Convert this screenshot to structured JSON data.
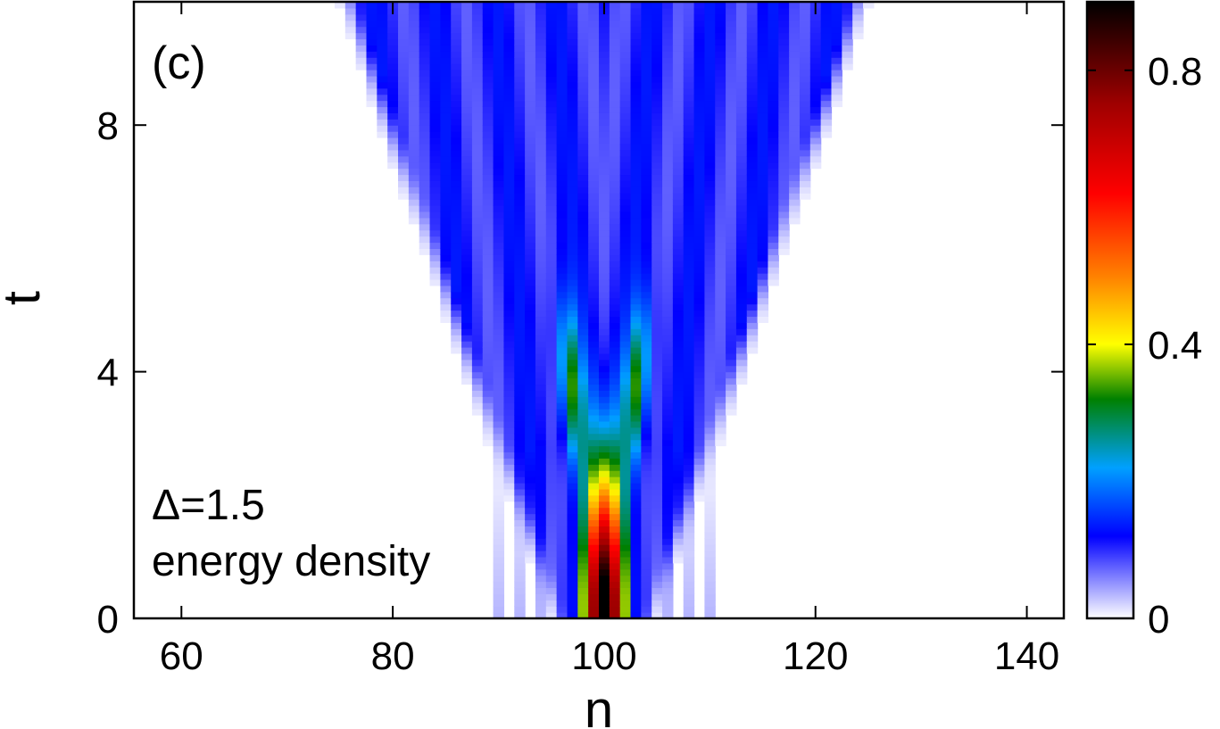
{
  "chart_data": {
    "type": "heatmap",
    "title": "",
    "panel_label": "(c)",
    "xlabel": "n",
    "ylabel": "t",
    "xlim": [
      55.5,
      143.5
    ],
    "ylim": [
      0,
      10
    ],
    "x_ticks": [
      60,
      80,
      100,
      120,
      140
    ],
    "y_ticks": [
      0,
      4,
      8
    ],
    "annotations": [
      "Δ=1.5",
      "energy density"
    ],
    "colorbar": {
      "range": [
        0,
        0.9
      ],
      "ticks": [
        0,
        0.4,
        0.8
      ],
      "colormap": [
        {
          "value": 0.0,
          "color": "#ffffff"
        },
        {
          "value": 0.12,
          "color": "#0000ff"
        },
        {
          "value": 0.22,
          "color": "#00a0ff"
        },
        {
          "value": 0.32,
          "color": "#008000"
        },
        {
          "value": 0.4,
          "color": "#ffff00"
        },
        {
          "value": 0.5,
          "color": "#ff8000"
        },
        {
          "value": 0.62,
          "color": "#ff0000"
        },
        {
          "value": 0.75,
          "color": "#a00000"
        },
        {
          "value": 0.9,
          "color": "#000000"
        }
      ]
    },
    "features": {
      "center_n": 100,
      "initial_peak_energy": 0.9,
      "light_cone_half_width_at_t10": 20,
      "description_ranges": {
        "core_hot_region_t": [
          0,
          3
        ],
        "green_side_lobes_t": [
          3,
          5
        ]
      }
    }
  }
}
